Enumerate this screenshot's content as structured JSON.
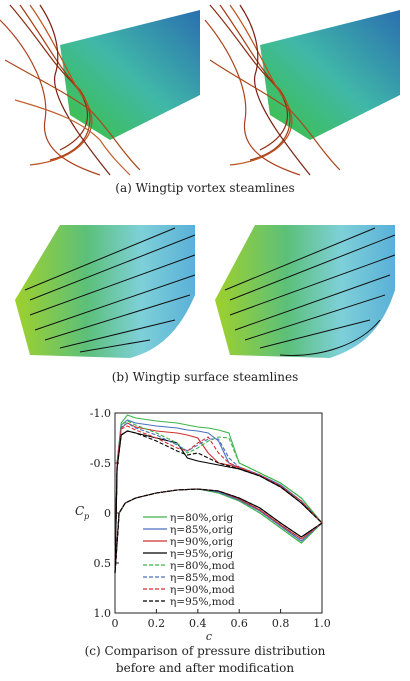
{
  "figure": {
    "caption_a": "(a) Wingtip vortex steamlines",
    "caption_b": "(b) Wingtip surface steamlines",
    "caption_c_line1": "(c) Comparison of pressure distribution",
    "caption_c_line2": "before and after modification"
  },
  "chart_data": {
    "type": "line",
    "x_label": "c",
    "y_label": "C",
    "y_label_sub": "p",
    "xlim": [
      0,
      1
    ],
    "ylim": [
      -1,
      1
    ],
    "y_inverted": true,
    "xticks": [
      0,
      0.2,
      0.4,
      0.6,
      0.8,
      {
        "value": 1,
        "label": "1.0"
      }
    ],
    "yticks": [
      {
        "value": -1,
        "label": "-1.0"
      },
      -0.5,
      0,
      0.5,
      {
        "value": 1,
        "label": "1.0"
      }
    ],
    "x": [
      0,
      0.01,
      0.03,
      0.06,
      0.1,
      0.2,
      0.3,
      0.35,
      0.4,
      0.45,
      0.5,
      0.55,
      0.6,
      0.7,
      0.8,
      0.9,
      1.0,
      0.9,
      0.8,
      0.7,
      0.6,
      0.5,
      0.4,
      0.3,
      0.2,
      0.1,
      0.05,
      0.02,
      0
    ],
    "series": [
      {
        "name": "η=80%,orig",
        "color": "#3cb44b",
        "dashed": false,
        "values": [
          0.6,
          -0.5,
          -0.9,
          -0.98,
          -0.95,
          -0.92,
          -0.9,
          -0.88,
          -0.86,
          -0.85,
          -0.83,
          -0.8,
          -0.5,
          -0.4,
          -0.3,
          -0.15,
          0.1,
          0.3,
          0.15,
          0.0,
          -0.12,
          -0.2,
          -0.24,
          -0.23,
          -0.2,
          -0.15,
          -0.1,
          0.0,
          0.6
        ]
      },
      {
        "name": "η=85%,orig",
        "color": "#4a6fc0",
        "dashed": false,
        "values": [
          0.6,
          -0.5,
          -0.88,
          -0.93,
          -0.9,
          -0.87,
          -0.85,
          -0.83,
          -0.82,
          -0.8,
          -0.72,
          -0.5,
          -0.45,
          -0.38,
          -0.28,
          -0.12,
          0.1,
          0.28,
          0.13,
          -0.02,
          -0.13,
          -0.21,
          -0.24,
          -0.23,
          -0.2,
          -0.15,
          -0.1,
          0.0,
          0.6
        ]
      },
      {
        "name": "η=90%,orig",
        "color": "#d03030",
        "dashed": false,
        "values": [
          0.6,
          -0.5,
          -0.85,
          -0.9,
          -0.86,
          -0.82,
          -0.8,
          -0.78,
          -0.75,
          -0.6,
          -0.5,
          -0.48,
          -0.45,
          -0.38,
          -0.27,
          -0.12,
          0.1,
          0.26,
          0.12,
          -0.03,
          -0.14,
          -0.22,
          -0.24,
          -0.23,
          -0.2,
          -0.15,
          -0.1,
          0.0,
          0.6
        ]
      },
      {
        "name": "η=95%,orig",
        "color": "#000000",
        "dashed": false,
        "values": [
          0.6,
          -0.45,
          -0.78,
          -0.82,
          -0.8,
          -0.75,
          -0.7,
          -0.55,
          -0.52,
          -0.5,
          -0.48,
          -0.46,
          -0.44,
          -0.37,
          -0.26,
          -0.1,
          0.1,
          0.24,
          0.1,
          -0.05,
          -0.15,
          -0.22,
          -0.24,
          -0.23,
          -0.2,
          -0.15,
          -0.1,
          0.0,
          0.6
        ]
      },
      {
        "name": "η=80%,mod",
        "color": "#3cb44b",
        "dashed": true,
        "values": [
          0.6,
          -0.5,
          -0.88,
          -0.92,
          -0.88,
          -0.8,
          -0.7,
          -0.6,
          -0.65,
          -0.72,
          -0.76,
          -0.75,
          -0.5,
          -0.4,
          -0.3,
          -0.15,
          0.1,
          0.3,
          0.15,
          0.0,
          -0.12,
          -0.2,
          -0.24,
          -0.23,
          -0.2,
          -0.15,
          -0.1,
          0.0,
          0.6
        ]
      },
      {
        "name": "η=85%,mod",
        "color": "#4a6fc0",
        "dashed": true,
        "values": [
          0.6,
          -0.5,
          -0.86,
          -0.9,
          -0.85,
          -0.78,
          -0.68,
          -0.62,
          -0.68,
          -0.74,
          -0.74,
          -0.55,
          -0.46,
          -0.38,
          -0.28,
          -0.12,
          0.1,
          0.28,
          0.13,
          -0.02,
          -0.13,
          -0.21,
          -0.24,
          -0.23,
          -0.2,
          -0.15,
          -0.1,
          0.0,
          0.6
        ]
      },
      {
        "name": "η=90%,mod",
        "color": "#d03030",
        "dashed": true,
        "values": [
          0.6,
          -0.5,
          -0.84,
          -0.87,
          -0.83,
          -0.75,
          -0.65,
          -0.62,
          -0.7,
          -0.76,
          -0.6,
          -0.5,
          -0.46,
          -0.38,
          -0.27,
          -0.12,
          0.1,
          0.26,
          0.12,
          -0.03,
          -0.14,
          -0.22,
          -0.24,
          -0.23,
          -0.2,
          -0.15,
          -0.1,
          0.0,
          0.6
        ]
      },
      {
        "name": "η=95%,mod",
        "color": "#000000",
        "dashed": true,
        "values": [
          0.6,
          -0.45,
          -0.78,
          -0.82,
          -0.8,
          -0.72,
          -0.62,
          -0.58,
          -0.6,
          -0.55,
          -0.5,
          -0.47,
          -0.44,
          -0.37,
          -0.26,
          -0.1,
          0.1,
          0.24,
          0.1,
          -0.05,
          -0.15,
          -0.22,
          -0.24,
          -0.23,
          -0.2,
          -0.15,
          -0.1,
          0.0,
          0.6
        ]
      }
    ]
  }
}
